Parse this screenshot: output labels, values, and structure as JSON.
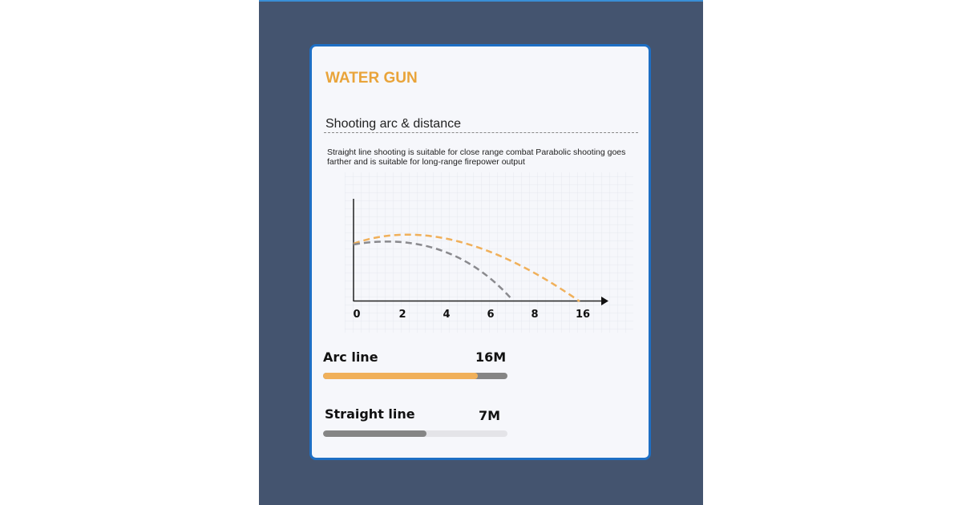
{
  "card": {
    "title": "WATER GUN",
    "subtitle": "Shooting arc & distance",
    "description": "Straight line shooting is suitable for close range combat Parabolic shooting goes farther and is suitable for long-range firepower output"
  },
  "diagram": {
    "x_ticks": [
      "0",
      "2",
      "4",
      "6",
      "8",
      "16"
    ],
    "arc_color": "#f0b05a",
    "straight_color": "#8a8a8e"
  },
  "stats": [
    {
      "label": "Arc line",
      "value": "16M",
      "fill_fraction": 0.84,
      "fill_color": "#f0b05a",
      "track_color": "#858585"
    },
    {
      "label": "Straight line",
      "value": "7M",
      "fill_fraction": 0.56,
      "fill_color": "#858585",
      "track_color": "#e4e4e8"
    }
  ],
  "colors": {
    "background": "#44546f",
    "card_border": "#1e6fc4",
    "title": "#e9a43a"
  }
}
